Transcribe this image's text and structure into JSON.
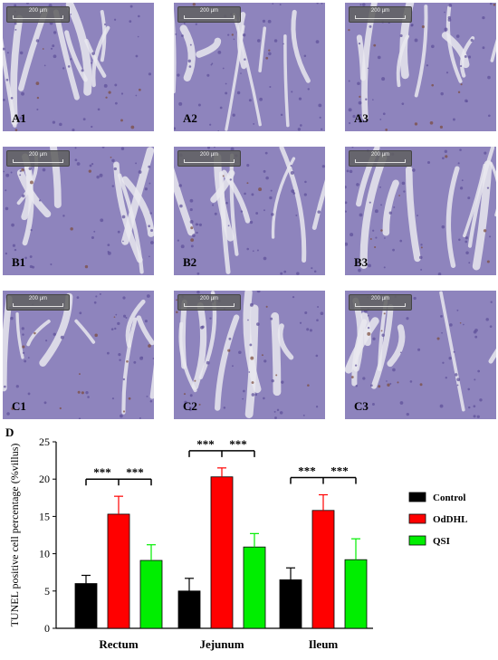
{
  "panels": [
    {
      "id": "A1",
      "label": "A1",
      "scalebar": "200 µm"
    },
    {
      "id": "A2",
      "label": "A2",
      "scalebar": "200 µm"
    },
    {
      "id": "A3",
      "label": "A3",
      "scalebar": "200 µm"
    },
    {
      "id": "B1",
      "label": "B1",
      "scalebar": "200 µm"
    },
    {
      "id": "B2",
      "label": "B2",
      "scalebar": "200 µm"
    },
    {
      "id": "B3",
      "label": "B3",
      "scalebar": "200 µm"
    },
    {
      "id": "C1",
      "label": "C1",
      "scalebar": "200 µm"
    },
    {
      "id": "C2",
      "label": "C2",
      "scalebar": "200 µm"
    },
    {
      "id": "C3",
      "label": "C3",
      "scalebar": "200 µm"
    }
  ],
  "colors": {
    "tissue": "#8e84bd",
    "background": "#e9e7ee",
    "control": "#000000",
    "oddhl": "#ff0000",
    "qsi": "#00ee00"
  },
  "chart_data": {
    "type": "bar",
    "panel_label": "D",
    "ylabel": "TUNEL positive cell percentage (%villus)",
    "xlabel": "",
    "ylim": [
      0,
      25
    ],
    "yticks": [
      "0",
      "5",
      "10",
      "15",
      "20",
      "25"
    ],
    "categories": [
      "Rectum",
      "Jejunum",
      "Ileum"
    ],
    "series": [
      {
        "name": "Control",
        "color": "#000000",
        "values": [
          6.0,
          5.0,
          6.5
        ],
        "errors": [
          1.1,
          1.7,
          1.6
        ]
      },
      {
        "name": "OdDHL",
        "color": "#ff0000",
        "values": [
          15.3,
          20.3,
          15.8
        ],
        "errors": [
          2.4,
          1.2,
          2.1
        ]
      },
      {
        "name": "QSI",
        "color": "#00ee00",
        "values": [
          9.1,
          10.9,
          9.2
        ],
        "errors": [
          2.1,
          1.8,
          2.8
        ]
      }
    ],
    "significance": "***",
    "legend_position": "right"
  }
}
